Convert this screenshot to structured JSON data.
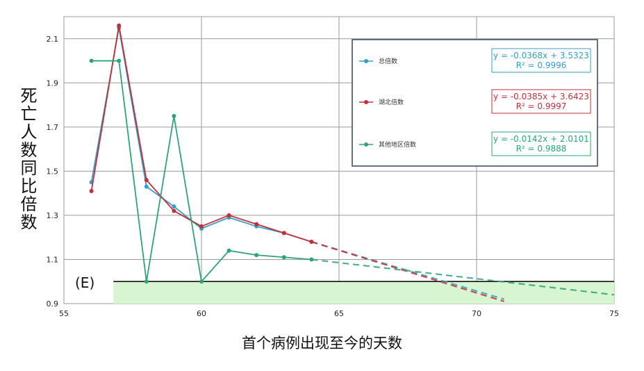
{
  "chart_data": {
    "type": "line",
    "xlabel": "首个病例出现至今的天数",
    "ylabel": "死亡人数同比倍数",
    "xlim": [
      55,
      75
    ],
    "ylim": [
      0.9,
      2.2
    ],
    "xticks": [
      55,
      60,
      65,
      70,
      75
    ],
    "yticks": [
      0.9,
      1.1,
      1.3,
      1.5,
      1.7,
      1.9,
      2.1
    ],
    "grid": true,
    "legend_position": "top-right",
    "panel_label": "(E)",
    "reference_line": {
      "y": 1.0,
      "shaded_band": [
        0.9,
        1.0
      ],
      "x_start": 56.8,
      "color": "#d6f5d0"
    },
    "series": [
      {
        "name": "总倍数",
        "color": "#3a9bc4",
        "equation": "y = -0.0368x + 3.5323",
        "r2": "R² = 0.9996",
        "x": [
          56,
          57,
          58,
          59,
          60,
          61,
          62,
          63,
          64
        ],
        "y": [
          1.45,
          2.15,
          1.43,
          1.34,
          1.24,
          1.29,
          1.25,
          1.22,
          1.18
        ],
        "trend": {
          "x": [
            64,
            71
          ],
          "y": [
            1.18,
            0.92
          ]
        }
      },
      {
        "name": "湖北倍数",
        "color": "#c0303a",
        "equation": "y = -0.0385x + 3.6423",
        "r2": "R² = 0.9997",
        "x": [
          56,
          57,
          58,
          59,
          60,
          61,
          62,
          63,
          64
        ],
        "y": [
          1.41,
          2.16,
          1.46,
          1.32,
          1.25,
          1.3,
          1.26,
          1.22,
          1.18
        ],
        "trend": {
          "x": [
            64,
            71
          ],
          "y": [
            1.18,
            0.91
          ]
        }
      },
      {
        "name": "其他地区倍数",
        "color": "#2ea37a",
        "equation": "y = -0.0142x + 2.0101",
        "r2": "R² = 0.9888",
        "x": [
          56,
          57,
          58,
          59,
          60,
          61,
          62,
          63,
          64
        ],
        "y": [
          2.0,
          2.0,
          1.0,
          1.75,
          1.0,
          1.14,
          1.12,
          1.11,
          1.1
        ],
        "trend": {
          "x": [
            64,
            75
          ],
          "y": [
            1.1,
            0.94
          ]
        }
      }
    ]
  }
}
